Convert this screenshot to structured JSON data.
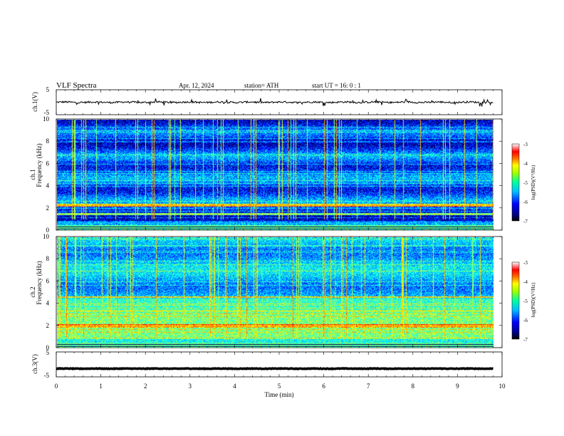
{
  "header": {
    "title": "VLF  Spectra",
    "date": "Apr. 12, 2024",
    "station": "station= ATH",
    "start": "start  UT  =    16: 0   : 1"
  },
  "chart_data": [
    {
      "type": "line",
      "name": "ch1-waveform",
      "ylabel": "ch.1(V)",
      "ylim": [
        -5,
        5
      ],
      "yticks": [
        "5",
        "-5"
      ],
      "xlim": [
        0,
        10
      ],
      "baseline": 0,
      "noise_amplitude": 0.35,
      "color": "#000000"
    },
    {
      "type": "heatmap",
      "name": "ch1-spectrogram",
      "ylabel_line1": "ch.1",
      "ylabel_line2": "Frequency  (kHz)",
      "ylim": [
        0,
        10
      ],
      "yticks": [
        "10",
        "8",
        "6",
        "4",
        "2",
        "0"
      ],
      "xlim": [
        0,
        9.8
      ],
      "colorbar": {
        "label": "log(PSD)(V²/Hz)",
        "range": [
          -7,
          -3
        ],
        "ticks": [
          "-3",
          "-4",
          "-5",
          "-6",
          "-7"
        ]
      }
    },
    {
      "type": "heatmap",
      "name": "ch2-spectrogram",
      "ylabel_line1": "ch.2",
      "ylabel_line2": "Frequency  (kHz)",
      "ylim": [
        0,
        10
      ],
      "yticks": [
        "10",
        "8",
        "6",
        "4",
        "2",
        "0"
      ],
      "xlim": [
        0,
        9.8
      ],
      "colorbar": {
        "label": "log(PSD)(V²/Hz)",
        "range": [
          -7,
          -3
        ],
        "ticks": [
          "-3",
          "-4",
          "-5",
          "-6",
          "-7"
        ]
      }
    },
    {
      "type": "line",
      "name": "ch3-waveform",
      "ylabel": "ch.3(V)",
      "ylim": [
        -5,
        5
      ],
      "yticks": [
        "5",
        "-5"
      ],
      "xlim": [
        0,
        10
      ],
      "baseline": -1.7,
      "noise_amplitude": 0.1,
      "color": "#000000"
    }
  ],
  "xaxis": {
    "label": "Time  (min)",
    "range": [
      0,
      10
    ],
    "ticks": [
      "0",
      "1",
      "2",
      "3",
      "4",
      "5",
      "6",
      "7",
      "8",
      "9",
      "10"
    ]
  },
  "colors": {
    "jet": [
      "#000080",
      "#0000ff",
      "#0080ff",
      "#00ffff",
      "#80ff80",
      "#ffff00",
      "#ff8000",
      "#ff0000",
      "#800000"
    ]
  }
}
